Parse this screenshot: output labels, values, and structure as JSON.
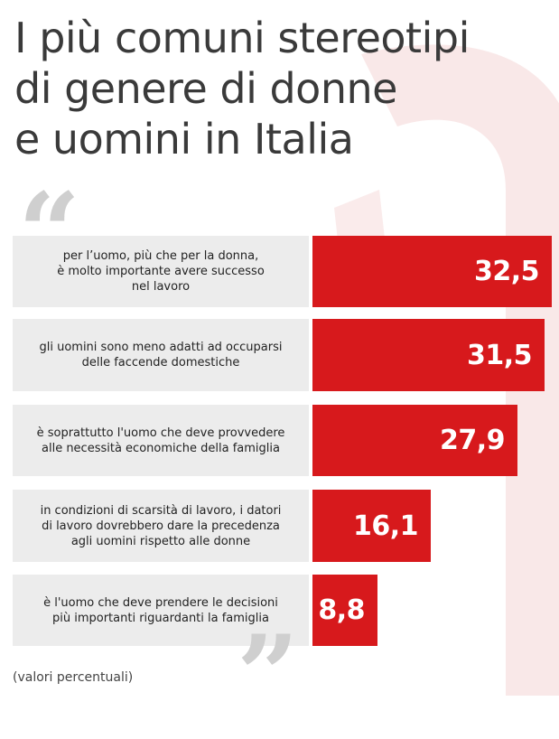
{
  "title_lines": [
    "I più comuni stereotipi",
    "di genere di donne",
    "e uomini in Italia"
  ],
  "quote_open": "“",
  "quote_close": "”",
  "footnote": "(valori percentuali)",
  "colors": {
    "bar": "#d7191c",
    "label_bg": "#ececec",
    "quote": "#cfcfcf",
    "deco": "#f6dede"
  },
  "chart_data": {
    "type": "bar",
    "orientation": "horizontal",
    "categories": [
      "per l’uomo, più che per la donna,\nè molto importante avere successo\nnel lavoro",
      "gli uomini sono meno adatti ad occuparsi\ndelle faccende domestiche",
      "è soprattutto l'uomo che deve provvedere\nalle necessità economiche della famiglia",
      "in condizioni di scarsità di lavoro, i datori\ndi lavoro dovrebbero dare la precedenza\nagli uomini rispetto alle donne",
      "è l'uomo che deve prendere le decisioni\npiù importanti riguardanti la famiglia"
    ],
    "values": [
      32.5,
      31.5,
      27.9,
      16.1,
      8.8
    ],
    "value_labels": [
      "32,5",
      "31,5",
      "27,9",
      "16,1",
      "8,8"
    ]
  }
}
